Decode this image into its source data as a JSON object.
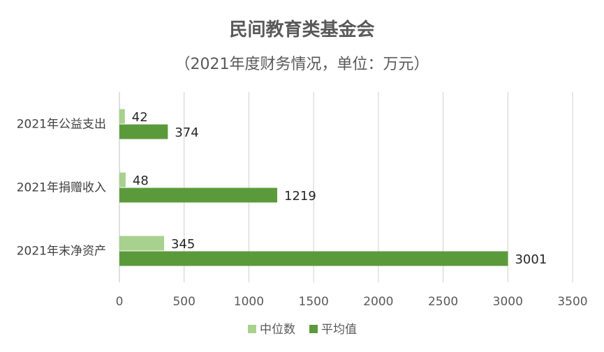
{
  "chart_data": {
    "type": "bar",
    "orientation": "horizontal",
    "title": "民间教育类基金会",
    "subtitle": "（2021年度财务情况，单位：万元）",
    "categories": [
      "2021年公益支出",
      "2021年捐赠收入",
      "2021年末净资产"
    ],
    "series": [
      {
        "name": "中位数",
        "values": [
          42,
          48,
          345
        ],
        "color": "#a9d18e"
      },
      {
        "name": "平均值",
        "values": [
          374,
          1219,
          3001
        ],
        "color": "#5b9a3a"
      }
    ],
    "xlim": [
      0,
      3500
    ],
    "xticks": [
      "0",
      "500",
      "1000",
      "1500",
      "2000",
      "2500",
      "3000",
      "3500"
    ],
    "grid": "vertical",
    "legend_position": "bottom"
  }
}
